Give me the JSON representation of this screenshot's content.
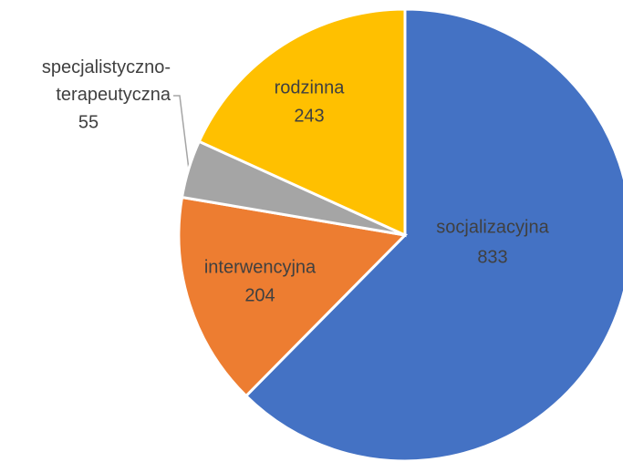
{
  "chart_data": {
    "type": "pie",
    "categories": [
      "socjalizacyjna",
      "interwencyjna",
      "specjalistyczno-terapeutyczna",
      "rodzinna"
    ],
    "values": [
      833,
      204,
      55,
      243
    ],
    "colors": [
      "#4472c4",
      "#ed7d31",
      "#a5a5a5",
      "#ffc000"
    ]
  }
}
